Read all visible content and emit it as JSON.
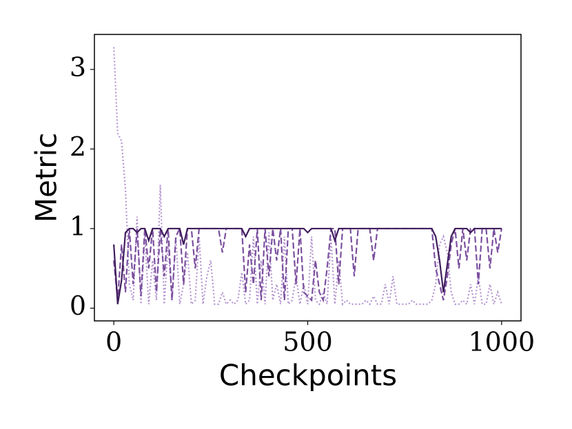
{
  "chart_data": {
    "type": "line",
    "x_label": "Checkpoints",
    "y_label": "Metric",
    "x": [
      0,
      10,
      20,
      30,
      40,
      50,
      60,
      70,
      80,
      90,
      100,
      110,
      120,
      130,
      140,
      150,
      160,
      170,
      180,
      190,
      200,
      210,
      220,
      230,
      240,
      250,
      260,
      270,
      280,
      290,
      300,
      310,
      320,
      330,
      340,
      350,
      360,
      370,
      380,
      390,
      400,
      410,
      420,
      430,
      440,
      450,
      460,
      470,
      480,
      490,
      500,
      510,
      520,
      530,
      540,
      550,
      560,
      570,
      580,
      590,
      600,
      610,
      620,
      630,
      640,
      650,
      660,
      670,
      680,
      690,
      700,
      710,
      720,
      730,
      740,
      750,
      760,
      770,
      780,
      790,
      800,
      810,
      820,
      830,
      840,
      850,
      860,
      870,
      880,
      890,
      900,
      910,
      920,
      930,
      940,
      950,
      960,
      970,
      980,
      990,
      1000
    ],
    "series": [
      {
        "color": "#b393cf",
        "linestyle": "dotted",
        "values": [
          3.28,
          2.2,
          2.1,
          1.5,
          0.3,
          0.1,
          1.15,
          0.05,
          0.9,
          0.05,
          0.6,
          0.1,
          1.55,
          0.05,
          0.8,
          0.1,
          0.9,
          0.05,
          0.3,
          0.7,
          0.05,
          0.1,
          0.9,
          0.05,
          0.4,
          0.6,
          0.05,
          0.05,
          0.2,
          0.05,
          0.1,
          0.05,
          0.1,
          0.45,
          0.05,
          0.1,
          0.9,
          0.05,
          0.6,
          0.05,
          0.95,
          0.1,
          0.3,
          0.05,
          0.9,
          0.05,
          0.1,
          0.4,
          0.05,
          0.3,
          0.05,
          0.9,
          0.1,
          0.05,
          0.2,
          0.05,
          0.9,
          0.05,
          0.6,
          0.05,
          0.1,
          0.05,
          0.05,
          0.05,
          0.05,
          0.1,
          0.05,
          0.15,
          0.05,
          0.05,
          0.3,
          0.05,
          0.4,
          0.05,
          0.05,
          0.05,
          0.05,
          0.1,
          0.05,
          0.05,
          0.05,
          0.05,
          0.1,
          0.3,
          0.8,
          0.9,
          0.7,
          0.2,
          0.05,
          0.05,
          0.1,
          0.05,
          0.3,
          0.05,
          0.4,
          0.05,
          0.05,
          0.3,
          0.05,
          0.2,
          0.05
        ]
      },
      {
        "color": "#7b4f9e",
        "linestyle": "dashed",
        "values": [
          0.6,
          0.1,
          0.8,
          0.2,
          1,
          0.3,
          1,
          0.15,
          1,
          0.5,
          1,
          0.2,
          1,
          0.4,
          1,
          0.1,
          0.9,
          1,
          0.3,
          1,
          1,
          0.5,
          1,
          1,
          1,
          1,
          1,
          1,
          0.7,
          1,
          1,
          1,
          1,
          1,
          0.2,
          0.8,
          0.3,
          1,
          0.1,
          1,
          0.4,
          1,
          0.6,
          1,
          0.1,
          1,
          1,
          0.3,
          1,
          0.2,
          0.15,
          0.1,
          0.6,
          0.2,
          0.1,
          0.5,
          1,
          1,
          0.3,
          1,
          1,
          1,
          0.4,
          1,
          1,
          1,
          1,
          0.6,
          1,
          1,
          1,
          1,
          1,
          1,
          1,
          1,
          1,
          1,
          1,
          1,
          1,
          1,
          1,
          0.5,
          0.3,
          0.1,
          0.4,
          0.8,
          1,
          0.5,
          1,
          0.6,
          1,
          1,
          0.3,
          1,
          1,
          0.5,
          1,
          0.7,
          1
        ]
      },
      {
        "color": "#3f1d5c",
        "linestyle": "solid",
        "values": [
          0.8,
          0.05,
          0.35,
          0.95,
          1,
          1,
          0.95,
          1,
          1,
          0.85,
          1,
          1,
          1,
          0.9,
          1,
          1,
          1,
          1,
          0.8,
          1,
          1,
          1,
          1,
          1,
          1,
          1,
          1,
          1,
          1,
          1,
          1,
          1,
          1,
          1,
          0.9,
          1,
          1,
          1,
          1,
          1,
          1,
          1,
          1,
          1,
          1,
          1,
          1,
          1,
          1,
          1,
          0.95,
          1,
          1,
          1,
          1,
          1,
          1,
          0.85,
          1,
          1,
          1,
          1,
          1,
          1,
          1,
          1,
          1,
          1,
          1,
          1,
          1,
          1,
          1,
          1,
          1,
          1,
          1,
          1,
          1,
          1,
          1,
          1,
          1,
          0.9,
          0.6,
          0.2,
          0.55,
          0.9,
          1,
          1,
          1,
          1,
          0.95,
          1,
          1,
          1,
          1,
          1,
          1,
          1,
          1
        ]
      }
    ],
    "xlim": [
      -50,
      1050
    ],
    "ylim": [
      -0.16,
      3.44
    ],
    "xticks": [
      0,
      500,
      1000
    ],
    "yticks": [
      0,
      1,
      2,
      3
    ]
  }
}
